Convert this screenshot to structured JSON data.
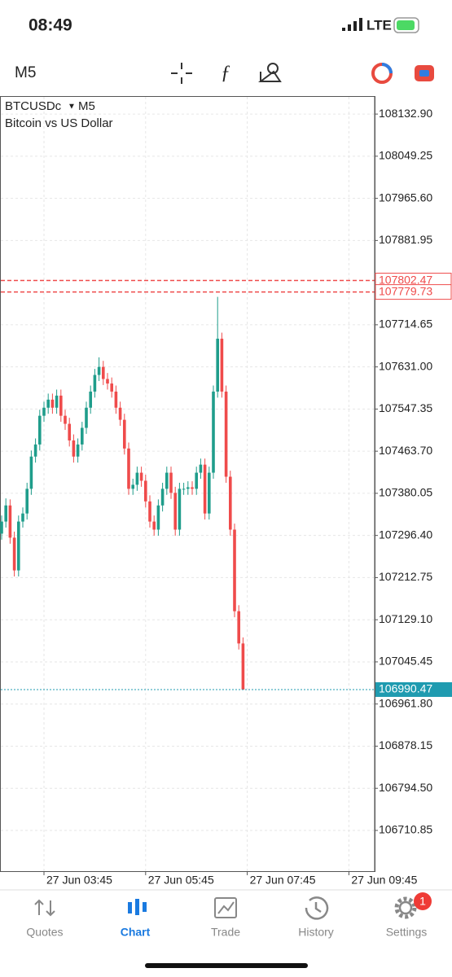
{
  "status_bar": {
    "time": "08:49",
    "network": "LTE"
  },
  "toolbar": {
    "timeframe": "M5"
  },
  "chart_data": {
    "type": "candlestick",
    "symbol": "BTCUSDc",
    "timeframe": "M5",
    "description": "Bitcoin vs US Dollar",
    "up_color": "#1f9d8b",
    "down_color": "#ef4b4b",
    "open": [
      107300,
      107324,
      107356,
      107292,
      107227,
      107324,
      107340,
      107389,
      107453,
      107477,
      107534,
      107550,
      107566,
      107550,
      107574,
      107534,
      107518,
      107485,
      107453,
      107477,
      107510,
      107550,
      107582,
      107615,
      107631,
      107607,
      107598,
      107582,
      107550,
      107526,
      107469,
      107389,
      107397,
      107421,
      107405,
      107364,
      107324,
      107308,
      107356,
      107389,
      107421,
      107381,
      107308,
      107389,
      107389,
      107392,
      107389,
      107421,
      107437,
      107340,
      107421,
      107582,
      107687,
      107582,
      107413,
      107308,
      107146,
      107082
    ],
    "high": [
      107336,
      107370,
      107368,
      107304,
      107336,
      107352,
      107401,
      107465,
      107489,
      107546,
      107562,
      107578,
      107578,
      107586,
      107586,
      107546,
      107530,
      107497,
      107489,
      107522,
      107562,
      107594,
      107627,
      107650,
      107643,
      107619,
      107610,
      107594,
      107562,
      107538,
      107481,
      107409,
      107433,
      107433,
      107417,
      107376,
      107336,
      107368,
      107401,
      107433,
      107433,
      107393,
      107401,
      107401,
      107404,
      107404,
      107433,
      107449,
      107449,
      107433,
      107594,
      107770,
      107699,
      107594,
      107425,
      107320,
      107158,
      107094
    ],
    "low": [
      107288,
      107312,
      107280,
      107215,
      107215,
      107312,
      107328,
      107377,
      107441,
      107465,
      107522,
      107538,
      107538,
      107538,
      107522,
      107506,
      107473,
      107441,
      107441,
      107465,
      107498,
      107538,
      107570,
      107603,
      107595,
      107586,
      107570,
      107538,
      107514,
      107457,
      107377,
      107377,
      107385,
      107393,
      107352,
      107312,
      107296,
      107296,
      107344,
      107377,
      107369,
      107296,
      107296,
      107377,
      107377,
      107377,
      107377,
      107409,
      107328,
      107328,
      107409,
      107570,
      107570,
      107401,
      107296,
      107134,
      107070,
      106990.47
    ],
    "close": [
      107324,
      107356,
      107292,
      107227,
      107324,
      107340,
      107389,
      107453,
      107477,
      107534,
      107550,
      107566,
      107550,
      107574,
      107534,
      107518,
      107485,
      107453,
      107477,
      107510,
      107550,
      107582,
      107615,
      107631,
      107607,
      107598,
      107582,
      107550,
      107526,
      107469,
      107389,
      107397,
      107421,
      107405,
      107364,
      107324,
      107308,
      107356,
      107389,
      107421,
      107381,
      107308,
      107389,
      107389,
      107392,
      107389,
      107421,
      107437,
      107340,
      107421,
      107582,
      107687,
      107582,
      107413,
      107308,
      107146,
      107082,
      106990.47
    ],
    "ylim": [
      106630,
      108167
    ],
    "yticks": [
      {
        "value": 108132.9,
        "label": "108132.90"
      },
      108049.25,
      {
        "value": 107965.6,
        "label": "107965.60"
      },
      107881.95,
      107714.65,
      {
        "value": 107631,
        "label": "107631.00"
      },
      107547.35,
      {
        "value": 107463.7,
        "label": "107463.70"
      },
      107380.05,
      {
        "value": 107296.4,
        "label": "107296.40"
      },
      107212.75,
      {
        "value": 107129.1,
        "label": "107129.10"
      },
      107045.45,
      {
        "value": 106961.8,
        "label": "106961.80"
      },
      106878.15,
      {
        "value": 106794.5,
        "label": "106794.50"
      },
      106710.85
    ],
    "x_labels": [
      "27 Jun 03:45",
      "27 Jun 05:45",
      "27 Jun 07:45",
      "27 Jun 09:45"
    ],
    "current_price": 106990.47,
    "current_color": "#1f9bb0",
    "order_levels": [
      107802.47,
      107779.73
    ],
    "order_color": "#ef4b4b",
    "grid": true
  },
  "tab_bar": {
    "items": [
      "Quotes",
      "Chart",
      "Trade",
      "History",
      "Settings"
    ],
    "active": 1,
    "badge": "1"
  }
}
